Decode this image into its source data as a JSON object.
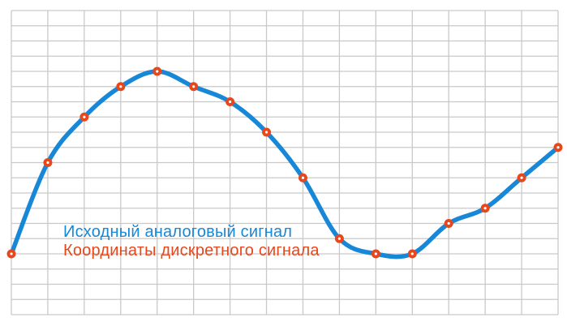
{
  "chart_data": {
    "type": "line",
    "title": "",
    "xlabel": "",
    "ylabel": "",
    "x": [
      0,
      1,
      2,
      3,
      4,
      5,
      6,
      7,
      8,
      9,
      10,
      11,
      12,
      13,
      14,
      15
    ],
    "series": [
      {
        "name": "Исходный аналоговый сигнал",
        "type": "smooth_line",
        "color": "#1787d8",
        "values": [
          4,
          10,
          13,
          15,
          16,
          15,
          14,
          12,
          9,
          5,
          4,
          4,
          6,
          7,
          9,
          11
        ]
      },
      {
        "name": "Координаты дискретного сигнала",
        "type": "scatter",
        "color": "#e8471c",
        "values": [
          4,
          10,
          13,
          15,
          16,
          15,
          14,
          12,
          9,
          5,
          4,
          4,
          6,
          7,
          9,
          11
        ]
      }
    ],
    "xlim": [
      0,
      15
    ],
    "ylim": [
      0,
      20
    ],
    "x_unit": "sample index (one grid column per sample)",
    "y_unit": "grid rows above bottom gridline",
    "grid": {
      "visible": true,
      "columns": 15,
      "rows": 20
    },
    "axes_visible": false,
    "tick_labels": "none",
    "legend_position": "inside lower-left"
  },
  "legend": {
    "analog_label": "Исходный аналоговый сигнал",
    "discrete_label": "Координаты дискретного сигнала"
  },
  "colors": {
    "analog_line": "#1787d8",
    "discrete_marker": "#e8471c",
    "marker_center": "#ffffff",
    "grid_line": "#c9c9c9",
    "background": "#ffffff"
  }
}
